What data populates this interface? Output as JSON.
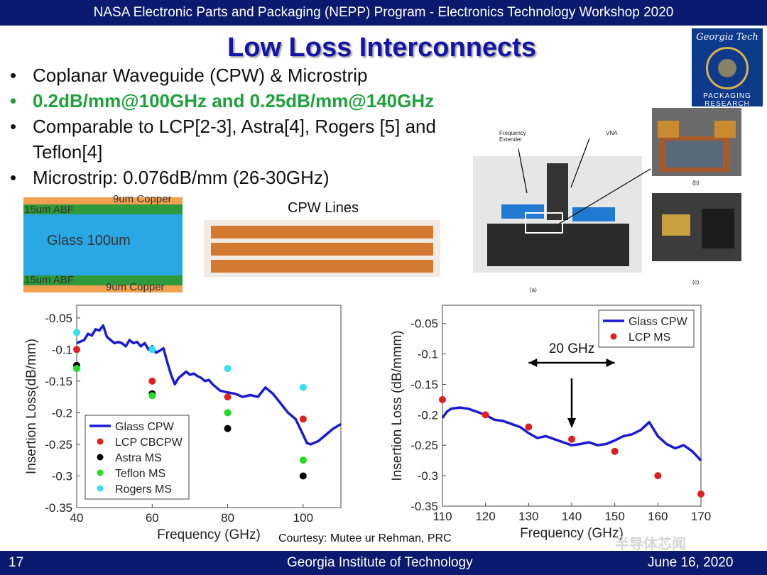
{
  "header": {
    "text": "NASA Electronic Parts and Packaging (NEPP) Program - Electronics Technology Workshop 2020"
  },
  "slide": {
    "title": "Low Loss Interconnects",
    "bullets": [
      "Coplanar Waveguide (CPW) & Microstrip",
      "0.2dB/mm@100GHz and 0.25dB/mm@140GHz",
      "Comparable to LCP[2-3], Astra[4], Rogers [5] and Teflon[4]",
      "Microstrip: 0.076dB/mm (26-30GHz)"
    ]
  },
  "logo": {
    "line1": "Georgia Tech",
    "line2": "PACKAGING",
    "line3": "RESEARCH"
  },
  "stackup": {
    "top_copper": "9um Copper",
    "top_abf": "15um ABF",
    "glass": "Glass 100um",
    "bottom_abf": "15um ABF",
    "bottom_copper": "9um Copper"
  },
  "cpw": {
    "title": "CPW Lines"
  },
  "photo": {
    "freq_extender": "Frequency Extender",
    "vna": "VNA",
    "label_a": "(a)",
    "label_b": "(b)",
    "label_c": "(c)"
  },
  "colors": {
    "bar": "#0b1a6e",
    "title": "#1515a8",
    "green": "#1ea13c",
    "glass_line": "#1a1ad6"
  },
  "chart_data": [
    {
      "type": "line",
      "xlabel": "Frequency (GHz)",
      "ylabel": "Insertion Loss(dB/mm)",
      "xlim": [
        40,
        110
      ],
      "ylim": [
        -0.35,
        -0.03
      ],
      "xticks": [
        40,
        60,
        80,
        100
      ],
      "yticks": [
        -0.05,
        -0.1,
        -0.15,
        -0.2,
        -0.25,
        -0.3,
        -0.35
      ],
      "legend": "bottom-left",
      "series": [
        {
          "name": "Glass CPW",
          "kind": "line",
          "color": "#1a1ad6",
          "x": [
            40,
            42,
            43,
            44,
            45,
            46,
            47,
            48,
            49,
            50,
            51,
            52,
            53,
            54,
            55,
            56,
            57,
            58,
            59,
            60,
            61,
            62,
            63,
            64,
            65,
            66,
            67,
            68,
            69,
            70,
            71,
            72,
            73,
            74,
            75,
            76,
            77,
            78,
            80,
            82,
            84,
            86,
            88,
            90,
            92,
            94,
            96,
            98,
            100,
            101,
            102,
            104,
            106,
            108,
            110
          ],
          "y": [
            -0.09,
            -0.085,
            -0.075,
            -0.078,
            -0.068,
            -0.07,
            -0.062,
            -0.08,
            -0.085,
            -0.09,
            -0.088,
            -0.09,
            -0.095,
            -0.085,
            -0.09,
            -0.088,
            -0.095,
            -0.09,
            -0.1,
            -0.095,
            -0.105,
            -0.102,
            -0.098,
            -0.12,
            -0.14,
            -0.155,
            -0.145,
            -0.14,
            -0.135,
            -0.14,
            -0.138,
            -0.142,
            -0.145,
            -0.15,
            -0.148,
            -0.155,
            -0.16,
            -0.165,
            -0.168,
            -0.17,
            -0.175,
            -0.172,
            -0.175,
            -0.16,
            -0.17,
            -0.185,
            -0.2,
            -0.21,
            -0.235,
            -0.248,
            -0.25,
            -0.245,
            -0.235,
            -0.225,
            -0.218
          ]
        },
        {
          "name": "LCP CBCPW",
          "kind": "scatter",
          "color": "#e02020",
          "x": [
            40,
            60,
            80,
            100
          ],
          "y": [
            -0.1,
            -0.15,
            -0.175,
            -0.21
          ]
        },
        {
          "name": "Astra MS",
          "kind": "scatter",
          "color": "#000000",
          "x": [
            40,
            60,
            80,
            100
          ],
          "y": [
            -0.125,
            -0.17,
            -0.225,
            -0.3
          ]
        },
        {
          "name": "Teflon MS",
          "kind": "scatter",
          "color": "#22dd22",
          "x": [
            40,
            60,
            80,
            100
          ],
          "y": [
            -0.13,
            -0.173,
            -0.2,
            -0.275
          ]
        },
        {
          "name": "Rogers MS",
          "kind": "scatter",
          "color": "#33e0f0",
          "x": [
            40,
            60,
            80,
            100
          ],
          "y": [
            -0.073,
            -0.1,
            -0.13,
            -0.16
          ]
        }
      ]
    },
    {
      "type": "line",
      "xlabel": "Frequency (GHz)",
      "ylabel": "Insertion Loss (dB/mmm)",
      "xlim": [
        110,
        170
      ],
      "ylim": [
        -0.35,
        -0.02
      ],
      "xticks": [
        110,
        120,
        130,
        140,
        150,
        160,
        170
      ],
      "yticks": [
        -0.05,
        -0.1,
        -0.15,
        -0.2,
        -0.25,
        -0.3,
        -0.35
      ],
      "legend": "top-right",
      "annotation": "20 GHz",
      "series": [
        {
          "name": "Glass CPW",
          "kind": "line",
          "color": "#1a1ad6",
          "x": [
            110,
            111,
            112,
            114,
            116,
            118,
            120,
            122,
            124,
            126,
            128,
            130,
            132,
            134,
            136,
            138,
            140,
            142,
            144,
            146,
            148,
            150,
            152,
            154,
            156,
            158,
            160,
            162,
            164,
            166,
            168,
            170
          ],
          "y": [
            -0.205,
            -0.195,
            -0.19,
            -0.188,
            -0.19,
            -0.195,
            -0.2,
            -0.208,
            -0.21,
            -0.215,
            -0.22,
            -0.23,
            -0.238,
            -0.235,
            -0.24,
            -0.245,
            -0.25,
            -0.248,
            -0.245,
            -0.25,
            -0.248,
            -0.242,
            -0.235,
            -0.232,
            -0.225,
            -0.212,
            -0.235,
            -0.248,
            -0.255,
            -0.25,
            -0.26,
            -0.275
          ]
        },
        {
          "name": "LCP MS",
          "kind": "scatter",
          "color": "#e02020",
          "x": [
            110,
            120,
            130,
            140,
            150,
            160,
            170
          ],
          "y": [
            -0.175,
            -0.2,
            -0.22,
            -0.24,
            -0.26,
            -0.3,
            -0.33
          ]
        }
      ]
    }
  ],
  "credit": "Courtesy: Mutee ur  Rehman, PRC",
  "watermark": "半导体芯闻",
  "footer": {
    "page": "17",
    "center": "Georgia Institute of Technology",
    "date": "June 16, 2020"
  }
}
